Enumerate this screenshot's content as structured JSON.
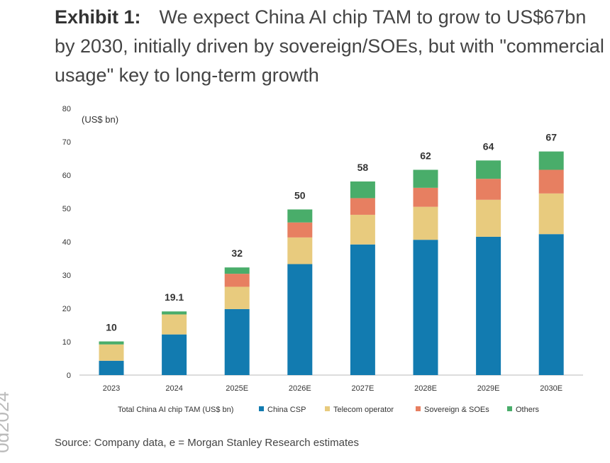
{
  "header": {
    "exhibit": "Exhibit 1:",
    "title": "We expect China AI chip TAM to grow to US$67bn by 2030, initially driven by sovereign/SOEs, but with \"commercial usage\" key to long-term growth"
  },
  "source": "Source: Company data, e = Morgan Stanley Research estimates",
  "watermark": "0d2024",
  "chart_data": {
    "type": "bar",
    "stacked": true,
    "ylabel": "(US$ bn)",
    "ylim": [
      0,
      80
    ],
    "yticks": [
      0,
      10,
      20,
      30,
      40,
      50,
      60,
      70,
      80
    ],
    "grid": false,
    "legend_position": "bottom",
    "legend_title": "Total China AI chip TAM (US$ bn)",
    "categories": [
      "2023",
      "2024",
      "2025E",
      "2026E",
      "2027E",
      "2028E",
      "2029E",
      "2030E"
    ],
    "totals_labels": [
      "10",
      "19.1",
      "32",
      "50",
      "58",
      "62",
      "64",
      "67"
    ],
    "series": [
      {
        "name": "China CSP",
        "color": "#127bb0",
        "values": [
          4.3,
          12.2,
          19.8,
          33.3,
          39.2,
          40.6,
          41.5,
          42.3
        ]
      },
      {
        "name": "Telecom operator",
        "color": "#e8cb7e",
        "values": [
          4.9,
          6.0,
          6.7,
          8.0,
          8.9,
          9.9,
          11.1,
          12.2
        ]
      },
      {
        "name": "Sovereign & SOEs",
        "color": "#e77f61",
        "values": [
          0,
          0,
          3.9,
          4.5,
          5.0,
          5.7,
          6.3,
          7.1
        ]
      },
      {
        "name": "Others",
        "color": "#49ad6a",
        "values": [
          0.9,
          0.9,
          1.9,
          3.9,
          5.0,
          5.4,
          5.5,
          5.5
        ]
      }
    ]
  }
}
